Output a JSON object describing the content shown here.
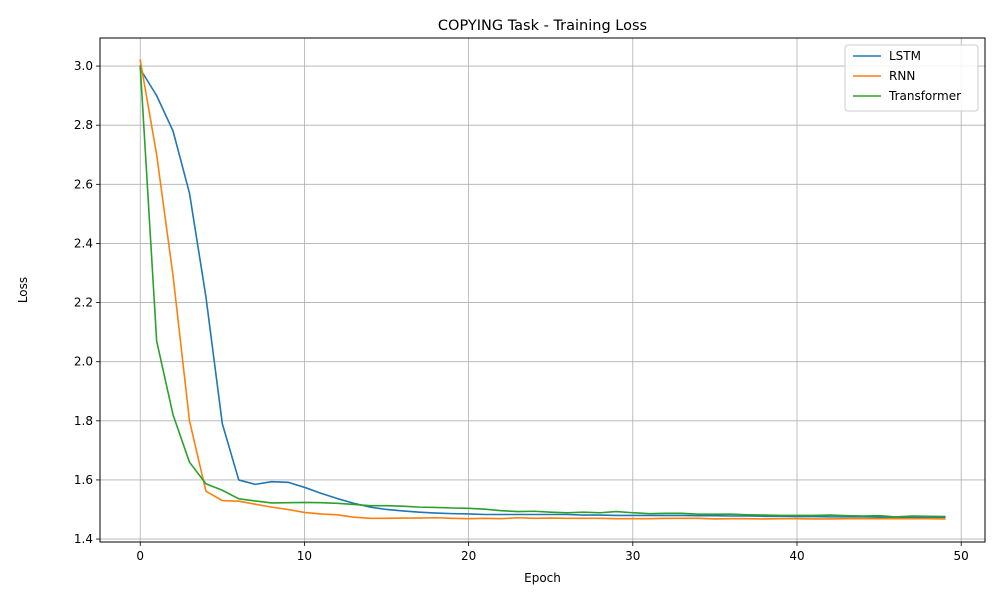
{
  "chart_data": {
    "type": "line",
    "title": "COPYING Task - Training Loss",
    "xlabel": "Epoch",
    "ylabel": "Loss",
    "xlim": [
      -2.45,
      51.45
    ],
    "ylim": [
      1.39,
      3.095
    ],
    "xticks": [
      0,
      10,
      20,
      30,
      40,
      50
    ],
    "yticks": [
      1.4,
      1.6,
      1.8,
      2.0,
      2.2,
      2.4,
      2.6,
      2.8,
      3.0
    ],
    "grid": true,
    "legend_position": "top-right",
    "x": [
      0,
      1,
      2,
      3,
      4,
      5,
      6,
      7,
      8,
      9,
      10,
      11,
      12,
      13,
      14,
      15,
      16,
      17,
      18,
      19,
      20,
      21,
      22,
      23,
      24,
      25,
      26,
      27,
      28,
      29,
      30,
      31,
      32,
      33,
      34,
      35,
      36,
      37,
      38,
      39,
      40,
      41,
      42,
      43,
      44,
      45,
      46,
      47,
      48,
      49
    ],
    "series": [
      {
        "name": "LSTM",
        "color": "#1f77b4",
        "values": [
          2.99,
          2.9,
          2.78,
          2.57,
          2.22,
          1.79,
          1.6,
          1.585,
          1.594,
          1.592,
          1.575,
          1.555,
          1.537,
          1.521,
          1.508,
          1.5,
          1.495,
          1.491,
          1.488,
          1.486,
          1.485,
          1.483,
          1.483,
          1.483,
          1.483,
          1.483,
          1.483,
          1.481,
          1.481,
          1.48,
          1.48,
          1.48,
          1.48,
          1.48,
          1.479,
          1.479,
          1.478,
          1.478,
          1.477,
          1.477,
          1.476,
          1.476,
          1.475,
          1.475,
          1.475,
          1.474,
          1.474,
          1.474,
          1.474,
          1.473
        ]
      },
      {
        "name": "RNN",
        "color": "#ff7f0e",
        "values": [
          3.02,
          2.7,
          2.29,
          1.8,
          1.562,
          1.53,
          1.528,
          1.518,
          1.508,
          1.5,
          1.49,
          1.485,
          1.482,
          1.474,
          1.47,
          1.47,
          1.471,
          1.471,
          1.472,
          1.47,
          1.469,
          1.47,
          1.469,
          1.472,
          1.47,
          1.471,
          1.47,
          1.47,
          1.47,
          1.469,
          1.469,
          1.469,
          1.47,
          1.47,
          1.47,
          1.468,
          1.469,
          1.469,
          1.468,
          1.469,
          1.469,
          1.468,
          1.468,
          1.469,
          1.469,
          1.469,
          1.469,
          1.469,
          1.469,
          1.468
        ]
      },
      {
        "name": "Transformer",
        "color": "#2ca02c",
        "values": [
          3.0,
          2.07,
          1.82,
          1.66,
          1.587,
          1.565,
          1.536,
          1.529,
          1.522,
          1.523,
          1.524,
          1.523,
          1.521,
          1.517,
          1.513,
          1.513,
          1.511,
          1.508,
          1.507,
          1.505,
          1.504,
          1.501,
          1.496,
          1.493,
          1.494,
          1.491,
          1.489,
          1.491,
          1.489,
          1.493,
          1.489,
          1.486,
          1.487,
          1.487,
          1.484,
          1.484,
          1.484,
          1.482,
          1.481,
          1.48,
          1.48,
          1.48,
          1.481,
          1.479,
          1.478,
          1.479,
          1.475,
          1.478,
          1.477,
          1.476
        ]
      }
    ]
  }
}
